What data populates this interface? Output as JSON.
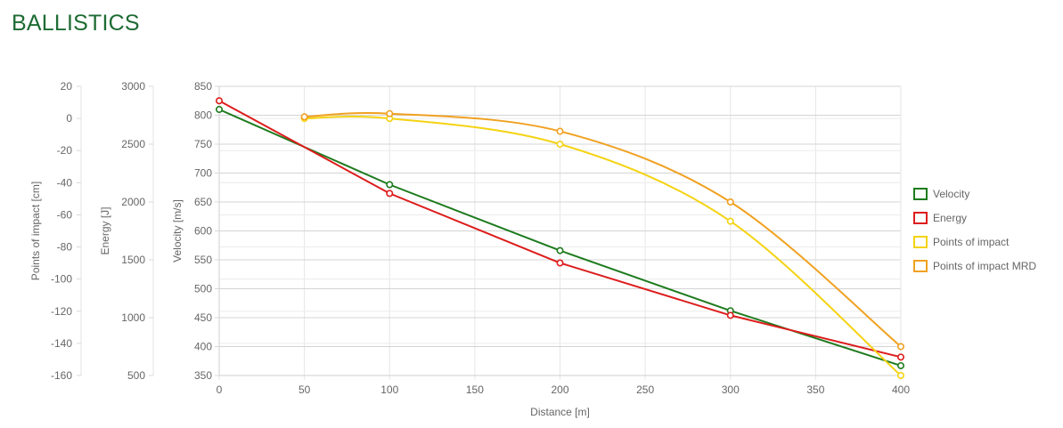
{
  "page": {
    "title": "BALLISTICS"
  },
  "chart_data": {
    "type": "line",
    "x": [
      0,
      50,
      100,
      200,
      300,
      400
    ],
    "xlabel": "Distance [m]",
    "xlim": [
      0,
      400
    ],
    "xticks": [
      0,
      50,
      100,
      150,
      200,
      250,
      300,
      350,
      400
    ],
    "grid": true,
    "legend": "right",
    "axes": {
      "points_of_impact": {
        "label": "Points of impact [cm]",
        "lim": [
          -160,
          20
        ],
        "ticks": [
          20,
          0,
          -20,
          -40,
          -60,
          -80,
          -100,
          -120,
          -140,
          -160
        ]
      },
      "energy": {
        "label": "Energy [J]",
        "lim": [
          500,
          3000
        ],
        "ticks": [
          3000,
          2500,
          2000,
          1500,
          1000,
          500
        ]
      },
      "velocity": {
        "label": "Velocity [m/s]",
        "lim": [
          350,
          850
        ],
        "ticks": [
          850,
          800,
          750,
          700,
          650,
          600,
          550,
          500,
          450,
          400,
          350
        ]
      }
    },
    "series": [
      {
        "name": "Velocity",
        "axis": "velocity",
        "color": "#1e7b1e",
        "smooth": false,
        "x": [
          0,
          100,
          200,
          300,
          400
        ],
        "values": [
          810,
          680,
          566,
          462,
          367
        ]
      },
      {
        "name": "Energy",
        "axis": "energy",
        "color": "#dd1c1c",
        "smooth": false,
        "x": [
          0,
          100,
          200,
          300,
          400
        ],
        "values": [
          2875,
          2074,
          1473,
          1020,
          659
        ]
      },
      {
        "name": "Points of impact",
        "axis": "points_of_impact",
        "color": "#f4d312",
        "smooth": true,
        "x": [
          50,
          100,
          200,
          300,
          400
        ],
        "values": [
          0,
          0,
          -16,
          -64,
          -160
        ]
      },
      {
        "name": "Points of impact MRD",
        "axis": "points_of_impact",
        "color": "#f0a121",
        "smooth": true,
        "x": [
          50,
          100,
          200,
          300,
          400
        ],
        "values": [
          1,
          3,
          -8,
          -52,
          -142
        ]
      }
    ]
  }
}
